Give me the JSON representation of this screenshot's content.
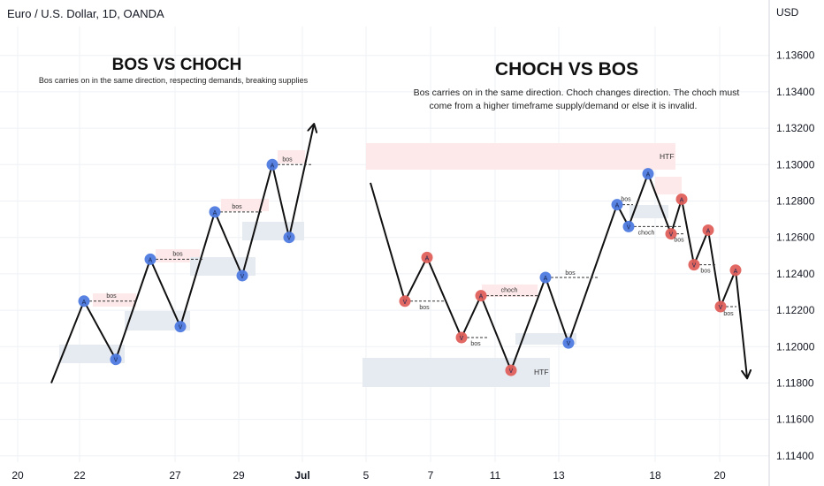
{
  "header": {
    "symbol_title": "Euro / U.S. Dollar, 1D, OANDA",
    "currency": "USD"
  },
  "theme": {
    "background": "#ffffff",
    "grid": "#eef1f6",
    "axis_text": "#131722",
    "line": "#111111",
    "blue_point": "#4f7be0",
    "red_point": "#e0605c",
    "demand_zone": "#e6eaf1",
    "supply_zone": "#fde9ea"
  },
  "left_panel": {
    "title": "BOS VS CHOCH",
    "subtitle": "Bos carries on in the same direction, respecting demands, breaking supplies"
  },
  "right_panel": {
    "title": "CHOCH VS BOS",
    "description_line1": "Bos carries on in the same direction. Choch changes direction. The choch must",
    "description_line2": "come from a higher timeframe supply/demand or else it is invalid."
  },
  "annotations": {
    "bos": "bos",
    "choch": "choch",
    "htf": "HTF",
    "point_top": "A",
    "point_bottom": "V"
  },
  "chart_data": {
    "type": "line",
    "title": "Euro / U.S. Dollar, 1D, OANDA",
    "ylabel": "USD",
    "y_ticks": [
      "1.13600",
      "1.13400",
      "1.13200",
      "1.13000",
      "1.12800",
      "1.12600",
      "1.12400",
      "1.12200",
      "1.12000",
      "1.11800",
      "1.11600",
      "1.11400"
    ],
    "x_ticks": [
      "20",
      "22",
      "27",
      "29",
      "Jul",
      "5",
      "7",
      "11",
      "13",
      "18",
      "20"
    ],
    "ylim": [
      1.1138,
      1.1372
    ],
    "grid": true,
    "series": [
      {
        "path": "left",
        "points": [
          {
            "y": 1.118
          },
          {
            "y": 1.1225,
            "marker": "blue"
          },
          {
            "y": 1.1193,
            "marker": "blue"
          },
          {
            "y": 1.1248,
            "marker": "blue"
          },
          {
            "y": 1.1211,
            "marker": "blue"
          },
          {
            "y": 1.1274,
            "marker": "blue"
          },
          {
            "y": 1.1239,
            "marker": "blue"
          },
          {
            "y": 1.13,
            "marker": "blue"
          },
          {
            "y": 1.126,
            "marker": "blue"
          },
          {
            "y": 1.1322
          }
        ]
      },
      {
        "path": "right",
        "points": [
          {
            "y": 1.129
          },
          {
            "y": 1.1225,
            "marker": "red"
          },
          {
            "y": 1.1249,
            "marker": "red"
          },
          {
            "y": 1.1205,
            "marker": "red"
          },
          {
            "y": 1.1228,
            "marker": "red"
          },
          {
            "y": 1.1187,
            "marker": "red"
          },
          {
            "y": 1.1238,
            "marker": "blue"
          },
          {
            "y": 1.1202,
            "marker": "blue"
          },
          {
            "y": 1.1278,
            "marker": "blue"
          },
          {
            "y": 1.1266,
            "marker": "blue"
          },
          {
            "y": 1.1295,
            "marker": "blue"
          },
          {
            "y": 1.1262,
            "marker": "red"
          },
          {
            "y": 1.1281,
            "marker": "red"
          },
          {
            "y": 1.1245,
            "marker": "red"
          },
          {
            "y": 1.1264,
            "marker": "red"
          },
          {
            "y": 1.1222,
            "marker": "red"
          },
          {
            "y": 1.1242,
            "marker": "red"
          },
          {
            "y": 1.1183
          }
        ]
      }
    ]
  }
}
